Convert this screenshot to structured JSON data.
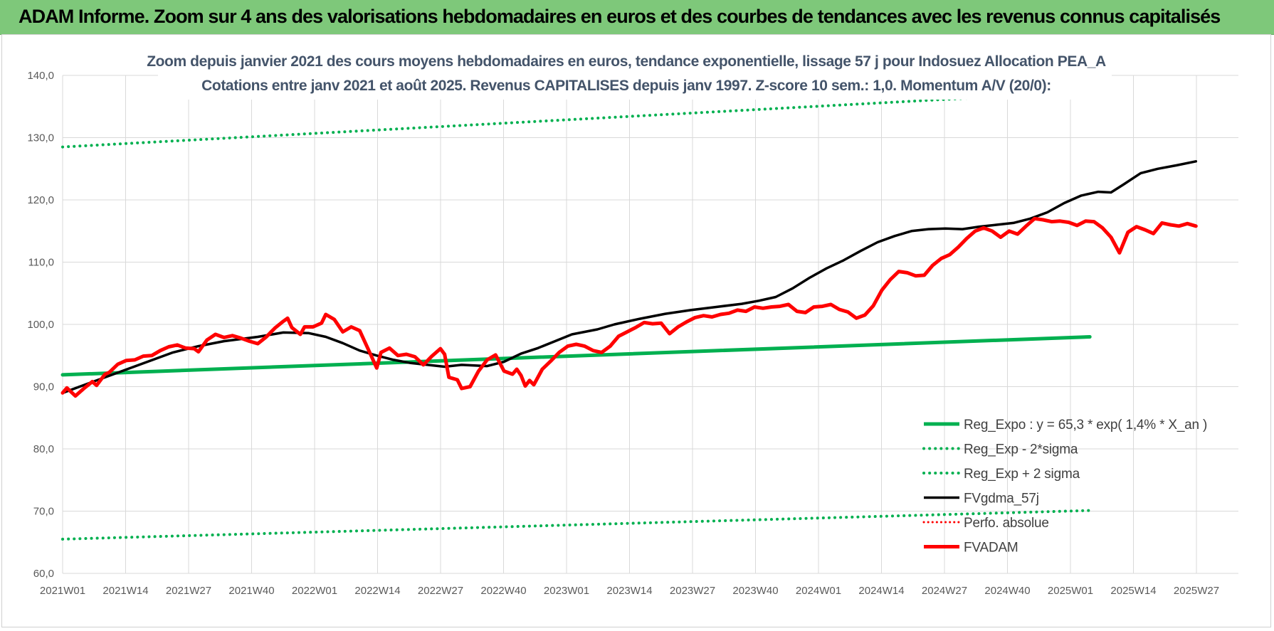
{
  "header": {
    "banner": "ADAM Informe. Zoom sur 4 ans des valorisations hebdomadaires en euros et des courbes de tendances avec les revenus connus capitalisés"
  },
  "colors": {
    "banner_bg": "#7ec87a",
    "reg_expo": "#00b050",
    "sigma_bands": "#00b050",
    "fvgdma": "#000000",
    "fvadam": "#ff0000",
    "perfo": "#ff0000",
    "title_text": "#44546a"
  },
  "chart_data": {
    "type": "line",
    "title": "Zoom depuis janvier 2021 des cours moyens hebdomadaires en euros, tendance exponentielle, lissage 57 j pour Indosuez Allocation PEA_A",
    "subtitle": "Cotations entre janv 2021 et août 2025. Revenus CAPITALISES depuis janv 1997. Z-score 10 sem.: 1,0. Momentum A/V (20/0):",
    "xlabel": "",
    "ylabel": "",
    "ylim": [
      60,
      140
    ],
    "y_ticks": [
      "60,0",
      "70,0",
      "80,0",
      "90,0",
      "100,0",
      "110,0",
      "120,0",
      "130,0",
      "140,0"
    ],
    "x_ticks": [
      "2021W01",
      "2021W14",
      "2021W27",
      "2021W40",
      "2022W01",
      "2022W14",
      "2022W27",
      "2022W40",
      "2023W01",
      "2023W14",
      "2023W27",
      "2023W40",
      "2024W01",
      "2024W14",
      "2024W27",
      "2024W40",
      "2025W01",
      "2025W14",
      "2025W27"
    ],
    "grid": true,
    "legend_position": "bottom-right",
    "x_unit": "week index from 2021W01 (0) to 2025W35 (242)",
    "series": [
      {
        "name": "Reg_Expo : y = 65,3 * exp( 1,4% *  X_an )",
        "style": "solid",
        "points": [
          [
            0,
            91.9
          ],
          [
            242,
            98.0
          ]
        ]
      },
      {
        "name": "Reg_Exp - 2*sigma",
        "style": "dotted",
        "points": [
          [
            0,
            65.5
          ],
          [
            242,
            70.1
          ]
        ]
      },
      {
        "name": "Reg_Exp + 2 sigma",
        "style": "dotted",
        "points": [
          [
            0,
            128.5
          ],
          [
            242,
            137.4
          ]
        ]
      },
      {
        "name": "FVgdma_57j",
        "style": "solid",
        "points": [
          [
            0,
            89.0
          ],
          [
            6,
            90.5
          ],
          [
            10,
            91.5
          ],
          [
            14,
            92.5
          ],
          [
            20,
            94.0
          ],
          [
            26,
            95.5
          ],
          [
            32,
            96.5
          ],
          [
            38,
            97.3
          ],
          [
            46,
            98.0
          ],
          [
            52,
            98.7
          ],
          [
            58,
            98.6
          ],
          [
            62,
            98.0
          ],
          [
            66,
            97.0
          ],
          [
            70,
            95.8
          ],
          [
            74,
            95.0
          ],
          [
            78,
            94.3
          ],
          [
            82,
            93.8
          ],
          [
            86,
            93.5
          ],
          [
            90,
            93.2
          ],
          [
            94,
            93.5
          ],
          [
            100,
            93.3
          ],
          [
            104,
            94.0
          ],
          [
            108,
            95.3
          ],
          [
            112,
            96.2
          ],
          [
            116,
            97.3
          ],
          [
            120,
            98.4
          ],
          [
            126,
            99.2
          ],
          [
            130,
            100.0
          ],
          [
            136,
            100.9
          ],
          [
            142,
            101.7
          ],
          [
            148,
            102.3
          ],
          [
            154,
            102.8
          ],
          [
            160,
            103.3
          ],
          [
            164,
            103.8
          ],
          [
            168,
            104.4
          ],
          [
            172,
            105.8
          ],
          [
            176,
            107.5
          ],
          [
            180,
            109.0
          ],
          [
            184,
            110.3
          ],
          [
            188,
            111.8
          ],
          [
            192,
            113.2
          ],
          [
            196,
            114.2
          ],
          [
            200,
            115.0
          ],
          [
            204,
            115.3
          ],
          [
            208,
            115.4
          ],
          [
            212,
            115.3
          ],
          [
            216,
            115.7
          ],
          [
            220,
            116.0
          ],
          [
            224,
            116.3
          ],
          [
            228,
            117.0
          ],
          [
            232,
            118.0
          ],
          [
            236,
            119.5
          ],
          [
            240,
            120.7
          ],
          [
            244,
            121.3
          ],
          [
            247,
            121.2
          ],
          [
            250,
            122.5
          ],
          [
            254,
            124.3
          ],
          [
            258,
            125.0
          ],
          [
            262,
            125.5
          ],
          [
            267,
            126.2
          ]
        ]
      },
      {
        "name": "Perfo. absolue",
        "style": "dotted",
        "points": []
      },
      {
        "name": "FVADAM",
        "style": "solid",
        "points": [
          [
            0,
            89.0
          ],
          [
            1,
            89.8
          ],
          [
            3,
            88.5
          ],
          [
            5,
            89.7
          ],
          [
            7,
            90.8
          ],
          [
            8,
            90.2
          ],
          [
            10,
            92.0
          ],
          [
            11,
            92.3
          ],
          [
            13,
            93.6
          ],
          [
            15,
            94.2
          ],
          [
            17,
            94.3
          ],
          [
            19,
            94.9
          ],
          [
            21,
            95.0
          ],
          [
            23,
            95.8
          ],
          [
            25,
            96.4
          ],
          [
            27,
            96.7
          ],
          [
            29,
            96.2
          ],
          [
            31,
            96.1
          ],
          [
            32,
            95.6
          ],
          [
            34,
            97.5
          ],
          [
            36,
            98.4
          ],
          [
            38,
            97.9
          ],
          [
            40,
            98.2
          ],
          [
            42,
            97.8
          ],
          [
            44,
            97.3
          ],
          [
            46,
            96.9
          ],
          [
            48,
            98.0
          ],
          [
            50,
            99.4
          ],
          [
            52,
            100.5
          ],
          [
            53,
            101.0
          ],
          [
            54,
            99.5
          ],
          [
            56,
            98.4
          ],
          [
            57,
            99.6
          ],
          [
            59,
            99.6
          ],
          [
            61,
            100.2
          ],
          [
            62,
            101.6
          ],
          [
            64,
            100.8
          ],
          [
            66,
            98.8
          ],
          [
            68,
            99.6
          ],
          [
            70,
            99.0
          ],
          [
            72,
            96.0
          ],
          [
            74,
            93.0
          ],
          [
            75,
            95.5
          ],
          [
            77,
            96.2
          ],
          [
            79,
            95.0
          ],
          [
            81,
            95.2
          ],
          [
            83,
            94.8
          ],
          [
            85,
            93.5
          ],
          [
            87,
            94.9
          ],
          [
            89,
            96.1
          ],
          [
            90,
            95.2
          ],
          [
            91,
            91.5
          ],
          [
            93,
            91.1
          ],
          [
            94,
            89.7
          ],
          [
            96,
            90.0
          ],
          [
            98,
            92.5
          ],
          [
            100,
            94.3
          ],
          [
            102,
            95.1
          ],
          [
            104,
            92.5
          ],
          [
            106,
            92.0
          ],
          [
            107,
            92.8
          ],
          [
            108,
            91.8
          ],
          [
            109,
            90.1
          ],
          [
            110,
            91.0
          ],
          [
            111,
            90.3
          ],
          [
            113,
            92.8
          ],
          [
            115,
            94.1
          ],
          [
            117,
            95.5
          ],
          [
            119,
            96.5
          ],
          [
            121,
            96.8
          ],
          [
            123,
            96.5
          ],
          [
            125,
            95.8
          ],
          [
            127,
            95.5
          ],
          [
            129,
            96.5
          ],
          [
            131,
            98.1
          ],
          [
            133,
            98.8
          ],
          [
            135,
            99.5
          ],
          [
            137,
            100.3
          ],
          [
            139,
            100.1
          ],
          [
            141,
            100.2
          ],
          [
            143,
            98.5
          ],
          [
            145,
            99.6
          ],
          [
            147,
            100.4
          ],
          [
            149,
            101.1
          ],
          [
            151,
            101.4
          ],
          [
            153,
            101.2
          ],
          [
            155,
            101.6
          ],
          [
            157,
            101.8
          ],
          [
            159,
            102.3
          ],
          [
            161,
            102.1
          ],
          [
            163,
            102.8
          ],
          [
            165,
            102.6
          ],
          [
            167,
            102.8
          ],
          [
            169,
            102.9
          ],
          [
            171,
            103.2
          ],
          [
            173,
            102.1
          ],
          [
            175,
            101.9
          ],
          [
            177,
            102.8
          ],
          [
            179,
            102.9
          ],
          [
            181,
            103.2
          ],
          [
            183,
            102.4
          ],
          [
            185,
            102.0
          ],
          [
            187,
            101.0
          ],
          [
            189,
            101.5
          ],
          [
            191,
            103.0
          ],
          [
            193,
            105.5
          ],
          [
            195,
            107.2
          ],
          [
            197,
            108.5
          ],
          [
            199,
            108.3
          ],
          [
            201,
            107.8
          ],
          [
            203,
            107.9
          ],
          [
            205,
            109.5
          ],
          [
            207,
            110.6
          ],
          [
            209,
            111.2
          ],
          [
            211,
            112.4
          ],
          [
            213,
            113.8
          ],
          [
            215,
            115.0
          ],
          [
            217,
            115.5
          ],
          [
            219,
            115.0
          ],
          [
            221,
            114.0
          ],
          [
            223,
            115.0
          ],
          [
            225,
            114.5
          ],
          [
            227,
            115.8
          ],
          [
            229,
            117.0
          ],
          [
            231,
            116.8
          ],
          [
            233,
            116.5
          ],
          [
            235,
            116.6
          ],
          [
            237,
            116.4
          ],
          [
            239,
            115.9
          ],
          [
            241,
            116.6
          ],
          [
            243,
            116.5
          ],
          [
            245,
            115.5
          ],
          [
            247,
            114.0
          ],
          [
            249,
            111.5
          ],
          [
            251,
            114.8
          ],
          [
            253,
            115.7
          ],
          [
            255,
            115.2
          ],
          [
            257,
            114.6
          ],
          [
            259,
            116.3
          ],
          [
            261,
            116.0
          ],
          [
            263,
            115.8
          ],
          [
            265,
            116.2
          ],
          [
            267,
            115.8
          ]
        ]
      }
    ]
  }
}
